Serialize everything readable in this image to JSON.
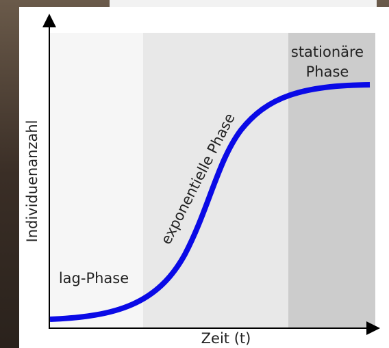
{
  "diagram": {
    "y_axis_label": "Individuenanzahl",
    "x_axis_label": "Zeit (t)",
    "phases": [
      {
        "label_lines": [
          "lag-Phase"
        ]
      },
      {
        "label_lines": [
          "exponentielle Phase"
        ]
      },
      {
        "label_lines": [
          "stationäre",
          "Phase"
        ]
      }
    ]
  }
}
